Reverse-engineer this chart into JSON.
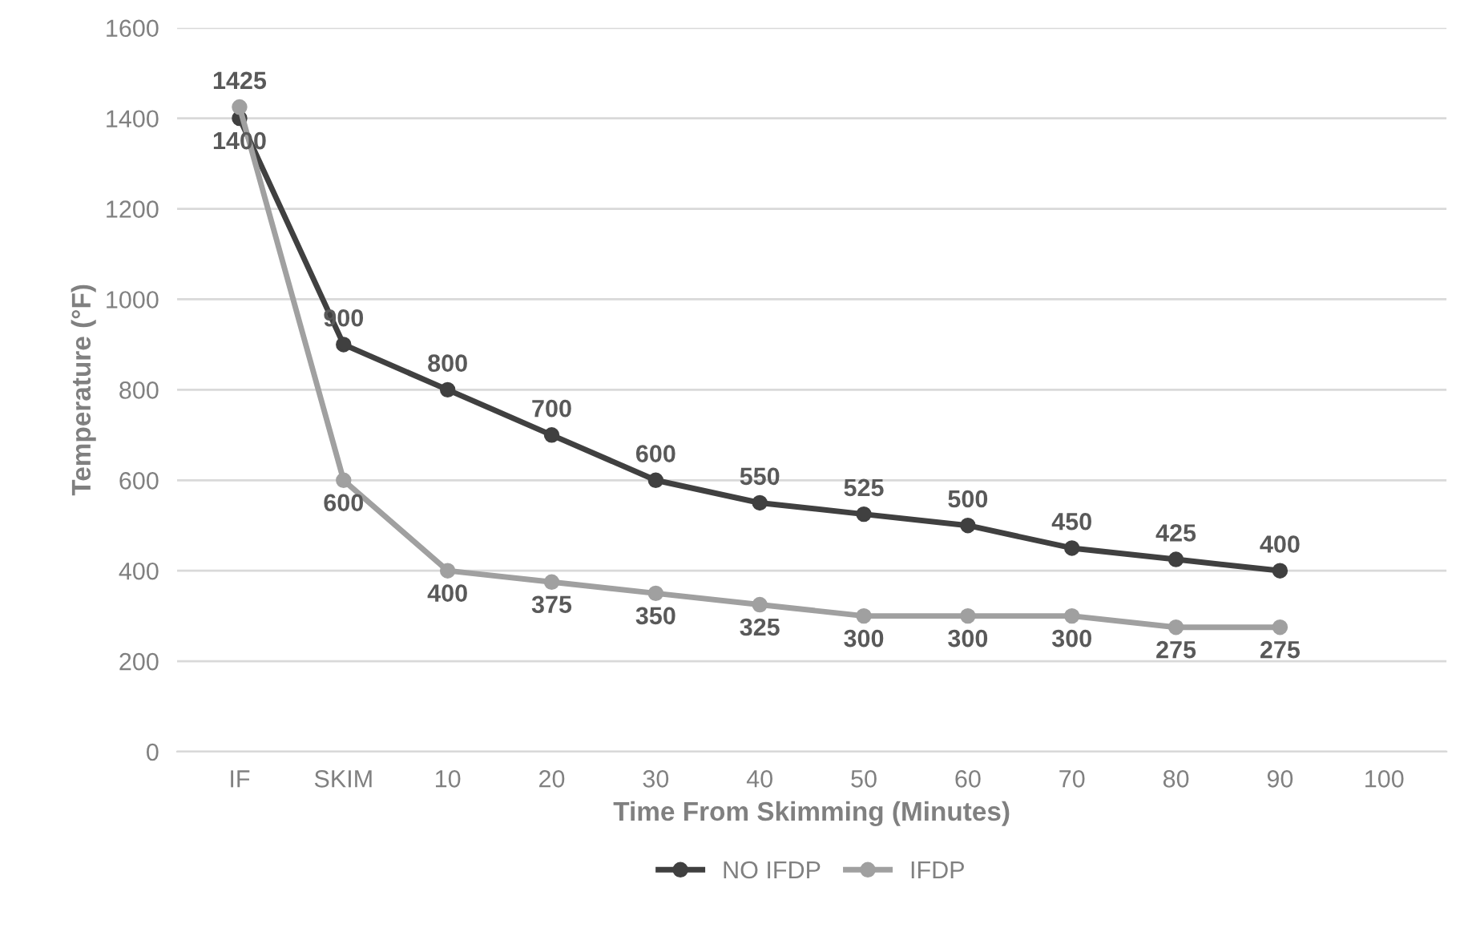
{
  "chart_data": {
    "type": "line",
    "ylabel": "Temperature (°F)",
    "xlabel": "Time From Skimming (Minutes)",
    "categories": [
      "IF",
      "SKIM",
      "10",
      "20",
      "30",
      "40",
      "50",
      "60",
      "70",
      "80",
      "90",
      "100"
    ],
    "series": [
      {
        "name": "NO IFDP",
        "color": "#404040",
        "values": [
          1400,
          900,
          800,
          700,
          600,
          550,
          525,
          500,
          450,
          425,
          400,
          null
        ]
      },
      {
        "name": "IFDP",
        "color": "#a0a0a0",
        "values": [
          1425,
          600,
          400,
          375,
          350,
          325,
          300,
          300,
          300,
          275,
          275,
          null
        ]
      }
    ],
    "ylim": [
      0,
      1600
    ],
    "yticks": [
      0,
      200,
      400,
      600,
      800,
      1000,
      1200,
      1400,
      1600
    ],
    "grid": "y",
    "legend": "bottom",
    "marker": "circle",
    "line_style": "solid",
    "data_labels": true
  }
}
